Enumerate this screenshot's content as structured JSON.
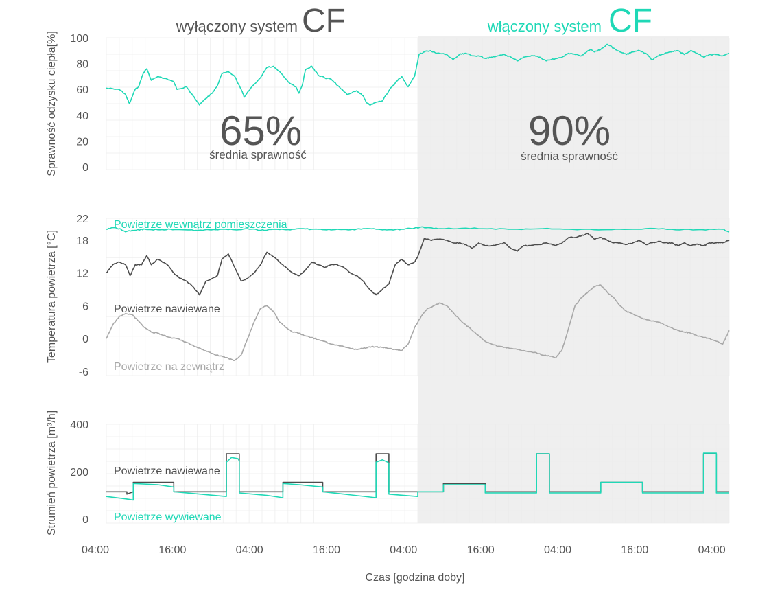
{
  "colors": {
    "teal": "#1fd8b6",
    "dark": "#4d4d4d",
    "gray": "#a8a8a8",
    "shade": "#efefef",
    "grid": "#ececec",
    "text": "#555555"
  },
  "header": {
    "left_text": "wyłączony system",
    "left_cf": "CF",
    "right_text": "włączony system",
    "right_cf": "CF"
  },
  "annotations": {
    "left_pct": "65%",
    "left_sub": "średnia sprawność",
    "right_pct": "90%",
    "right_sub": "średnia sprawność"
  },
  "x_axis": {
    "label": "Czas [godzina doby]",
    "range": [
      0,
      97
    ],
    "ticks": [
      0,
      12,
      24,
      36,
      48,
      60,
      72,
      84,
      96
    ],
    "tick_labels": [
      "04:00",
      "16:00",
      "04:00",
      "16:00",
      "04:00",
      "16:00",
      "04:00",
      "16:00",
      "04:00"
    ],
    "cf_start": 48.5
  },
  "chart_data": [
    {
      "type": "line",
      "title": "Sprawność odzysku ciepła",
      "ylabel": "Sprawność odzysku ciepła[%]",
      "ylim": [
        0,
        100
      ],
      "yticks": [
        0,
        20,
        40,
        60,
        80,
        100
      ],
      "series": [
        {
          "name": "Sprawność odzysku ciepła",
          "color": "teal",
          "x": [
            0,
            2,
            3,
            3.6,
            4.5,
            5,
            5.8,
            6.3,
            7,
            8,
            9.5,
            10.5,
            11,
            12.5,
            13.5,
            14.5,
            15.5,
            16.5,
            17.3,
            18,
            19,
            20,
            21,
            21.5,
            22.5,
            24,
            25,
            26,
            27.5,
            28.5,
            29.5,
            30,
            30.5,
            31,
            32,
            33,
            34,
            35,
            36,
            37.5,
            39,
            40,
            40.5,
            41,
            42,
            43,
            44,
            45,
            46,
            47,
            48,
            48.7,
            49.5,
            50.5,
            51.5,
            53,
            54,
            55,
            56,
            57,
            58,
            59,
            60,
            61,
            62,
            63,
            64,
            65,
            66.5,
            67.5,
            68.5,
            70,
            71,
            72,
            73,
            74,
            74.8,
            75.5,
            76,
            77,
            78,
            79,
            80,
            81,
            82,
            83,
            84,
            85,
            86,
            87,
            88,
            89,
            90,
            91,
            92,
            93,
            94,
            95,
            96,
            97
          ],
          "values": [
            61,
            60,
            56,
            49,
            60,
            62,
            73,
            76,
            67,
            70,
            68,
            66,
            60,
            62,
            55,
            48,
            53,
            57,
            63,
            72,
            74,
            70,
            60,
            54,
            61,
            69,
            77,
            78,
            71,
            65,
            62,
            57,
            63,
            75,
            78,
            71,
            69,
            68,
            63,
            56,
            59,
            55,
            50,
            48,
            50,
            51,
            59,
            65,
            70,
            62,
            70,
            87,
            89,
            90,
            88,
            87,
            83,
            87,
            88,
            86,
            86,
            84,
            85,
            86,
            87,
            85,
            82,
            85,
            86,
            85,
            82,
            84,
            85,
            88,
            87,
            86,
            89,
            91,
            89,
            91,
            95,
            92,
            89,
            87,
            89,
            90,
            88,
            83,
            86,
            88,
            89,
            90,
            87,
            90,
            88,
            85,
            87,
            87,
            86,
            88
          ]
        }
      ]
    },
    {
      "type": "line",
      "title": "Temperatura powietrza",
      "ylabel": "Temperatura powietrza [°C]",
      "ylim": [
        -6,
        22
      ],
      "yticks": [
        -6,
        0,
        6,
        12,
        18,
        22
      ],
      "series": [
        {
          "name": "Powietrze wewnątrz pomieszczenia",
          "color": "teal",
          "x": [
            0,
            1,
            2,
            3,
            4,
            5,
            6,
            8,
            10,
            12,
            14,
            16,
            18,
            20,
            22,
            24,
            26,
            28,
            30,
            32,
            34,
            36,
            38,
            40,
            42,
            44,
            46,
            48,
            49,
            50,
            52,
            56,
            60,
            64,
            68,
            72,
            76,
            80,
            84,
            88,
            92,
            96,
            97
          ],
          "values": [
            20.0,
            20.3,
            20.1,
            19.5,
            19.8,
            19.9,
            20.0,
            19.9,
            20.0,
            19.9,
            19.8,
            19.9,
            20.0,
            19.9,
            20.1,
            19.8,
            20.0,
            19.9,
            20.1,
            20.0,
            19.9,
            20.0,
            19.9,
            20.1,
            20.0,
            19.9,
            20.0,
            20.2,
            20.4,
            20.3,
            20.1,
            20.2,
            20.1,
            20.0,
            20.1,
            20.0,
            19.9,
            20.0,
            20.1,
            20.0,
            19.9,
            20.0,
            19.5
          ]
        },
        {
          "name": "Powietrze nawiewane",
          "color": "dark",
          "x": [
            0,
            1,
            2,
            3,
            3.7,
            4.5,
            5.5,
            6.3,
            7,
            8,
            9.5,
            10.5,
            11.5,
            12.5,
            13.5,
            14.5,
            15.5,
            16.5,
            17.3,
            18,
            19,
            20,
            21,
            22,
            23,
            24,
            25,
            26,
            27,
            28,
            29,
            30,
            31,
            32,
            33,
            34,
            35,
            36,
            37,
            38,
            39,
            40,
            41,
            42,
            43,
            44,
            45,
            46,
            47,
            48,
            48.5,
            49.5,
            50.5,
            51.5,
            53,
            54,
            55,
            56,
            57,
            58,
            59,
            60,
            61,
            62,
            63,
            64,
            65,
            66,
            67.5,
            68.5,
            70,
            71,
            72,
            73,
            74,
            75,
            76,
            77,
            78,
            79,
            80,
            81,
            82,
            83,
            84,
            85,
            86,
            87,
            88,
            89,
            90,
            91,
            92,
            93,
            94,
            95,
            96,
            97
          ],
          "values": [
            12,
            13.5,
            14,
            13.5,
            11.5,
            13.5,
            13.5,
            15.2,
            13.5,
            14.5,
            13.5,
            12,
            11,
            10.5,
            9.5,
            8,
            10.5,
            11,
            11.5,
            14.5,
            15.5,
            13,
            10.5,
            11,
            12,
            13.5,
            15.8,
            15,
            14,
            13,
            12,
            11.5,
            12.5,
            14,
            13.5,
            13,
            13.5,
            13.5,
            13,
            12,
            11.5,
            10.5,
            9,
            8,
            9,
            10,
            13.5,
            14.5,
            13.5,
            14,
            15,
            18.3,
            18,
            18.2,
            18,
            17.5,
            17.5,
            17.2,
            16.5,
            17.5,
            17,
            17,
            17.2,
            17.5,
            16.5,
            16,
            17,
            17,
            17.2,
            17.5,
            17,
            17.5,
            18.5,
            18.5,
            18.8,
            19.2,
            18.2,
            18.5,
            18,
            17.5,
            17.5,
            17.2,
            17.5,
            18,
            17.2,
            17.5,
            17.8,
            17.5,
            17.5,
            17,
            17.5,
            17,
            17.3,
            17,
            17.5,
            17.5,
            17.5,
            18
          ]
        },
        {
          "name": "Powietrze na zewnątrz",
          "color": "gray",
          "x": [
            0,
            1,
            2,
            3,
            4,
            5,
            6,
            7,
            8,
            9,
            10,
            11,
            12,
            13,
            14,
            15,
            16,
            17,
            18,
            19,
            20,
            21,
            22,
            23,
            24,
            25,
            26,
            27,
            28,
            29,
            30,
            31,
            32,
            33,
            34,
            35,
            36,
            37,
            38,
            39,
            40,
            41,
            42,
            43,
            44,
            45,
            46,
            47,
            48,
            49,
            50,
            51,
            52,
            53,
            54,
            55,
            56,
            57,
            58,
            59,
            60,
            61,
            62,
            63,
            64,
            65,
            66,
            67,
            68,
            69,
            70,
            71,
            72,
            73,
            74,
            75,
            76,
            77,
            78,
            79,
            80,
            81,
            82,
            83,
            84,
            85,
            86,
            87,
            88,
            89,
            90,
            91,
            92,
            93,
            94,
            95,
            96,
            97
          ],
          "values": [
            0,
            2.5,
            4,
            4.6,
            4.4,
            3.2,
            2,
            1.2,
            1,
            0.6,
            0.2,
            0,
            -0.5,
            -1,
            -1.5,
            -2,
            -2.5,
            -3,
            -3.2,
            -3.6,
            -4,
            -3,
            0,
            3,
            5.5,
            6,
            5,
            3,
            2,
            1.2,
            1,
            0.5,
            0.2,
            -0.2,
            -0.5,
            -1,
            -1.2,
            -1.5,
            -1.8,
            -2,
            -1.8,
            -1.5,
            -1.5,
            -1.6,
            -1.8,
            -2,
            -2.2,
            -1,
            2,
            4,
            5.5,
            6,
            6.5,
            6,
            4.8,
            3.5,
            2.5,
            1.5,
            0.5,
            -0.5,
            -1,
            -1.4,
            -1.6,
            -1.8,
            -2,
            -2.2,
            -2.4,
            -2.6,
            -3,
            -3.2,
            -3.5,
            -2,
            2,
            6,
            7.5,
            8.5,
            9.5,
            9.8,
            8.5,
            7.5,
            6,
            5,
            4.5,
            4,
            3.5,
            3.2,
            3,
            2.5,
            2,
            1.5,
            1.2,
            1,
            0.5,
            0.2,
            0,
            -0.5,
            -1,
            1.5
          ]
        }
      ]
    },
    {
      "type": "line",
      "title": "Strumień powietrza",
      "ylabel": "Strumień powietrza [m³/h]",
      "ylim": [
        0,
        400
      ],
      "yticks": [
        0,
        200,
        400
      ],
      "series": [
        {
          "name": "Powietrze nawiewane",
          "color": "dark",
          "x": [
            0,
            3.2,
            3.2,
            4.2,
            4.2,
            10.5,
            10.5,
            18.7,
            18.7,
            20.7,
            20.7,
            27.5,
            27.5,
            33.7,
            33.7,
            42,
            42,
            44,
            44,
            48.5,
            48.5,
            52.5,
            52.5,
            59,
            59,
            67,
            67,
            69,
            69,
            77,
            77,
            83.5,
            83.5,
            93,
            93,
            95,
            95,
            97
          ],
          "values": [
            115,
            115,
            105,
            115,
            155,
            155,
            115,
            115,
            275,
            275,
            115,
            115,
            155,
            155,
            115,
            115,
            275,
            275,
            115,
            115,
            115,
            115,
            150,
            150,
            115,
            115,
            275,
            275,
            115,
            115,
            155,
            155,
            115,
            115,
            275,
            275,
            115,
            115
          ]
        },
        {
          "name": "Powietrze wywiewane",
          "color": "teal",
          "x": [
            0,
            3,
            4.2,
            4.2,
            8,
            10.5,
            10.5,
            18.7,
            18.7,
            19.5,
            20.5,
            20.7,
            20.7,
            25,
            27.5,
            27.5,
            30,
            33.7,
            33.7,
            42,
            42,
            43,
            43.8,
            44,
            44,
            48.5,
            48.5,
            52.5,
            52.5,
            59,
            59,
            67,
            67,
            69,
            69,
            77,
            77,
            83.5,
            83.5,
            93,
            93,
            95,
            95,
            97
          ],
          "values": [
            95,
            85,
            80,
            150,
            145,
            135,
            115,
            95,
            240,
            260,
            255,
            245,
            110,
            100,
            90,
            150,
            145,
            135,
            115,
            90,
            240,
            250,
            240,
            235,
            105,
            95,
            115,
            115,
            145,
            145,
            110,
            110,
            275,
            275,
            110,
            110,
            155,
            155,
            110,
            110,
            278,
            278,
            110,
            110
          ]
        }
      ]
    }
  ],
  "series_labels": {
    "eff": "",
    "temp_inside": "Powietrze wewnątrz pomieszczenia",
    "temp_supply": "Powietrze nawiewane",
    "temp_outside": "Powietrze na zewnątrz",
    "flow_supply": "Powietrze nawiewane",
    "flow_exhaust": "Powietrze wywiewane"
  }
}
